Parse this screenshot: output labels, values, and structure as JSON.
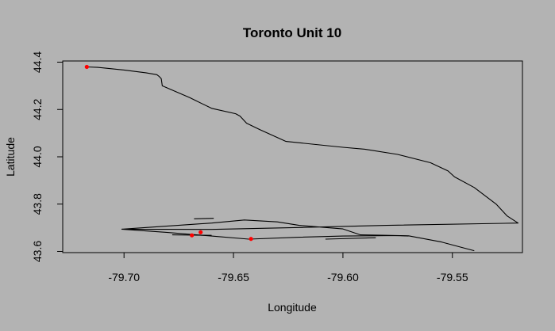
{
  "chart_data": {
    "type": "line",
    "title": "Toronto Unit 10",
    "xlabel": "Longitude",
    "ylabel": "Latitude",
    "xlim": [
      -79.728,
      -79.518
    ],
    "ylim": [
      43.595,
      44.405
    ],
    "x_ticks": [
      -79.7,
      -79.65,
      -79.6,
      -79.55
    ],
    "x_tick_labels": [
      "-79.70",
      "-79.65",
      "-79.60",
      "-79.55"
    ],
    "y_ticks": [
      43.6,
      43.8,
      44.0,
      44.2,
      44.4
    ],
    "y_tick_labels": [
      "43.6",
      "43.8",
      "44.0",
      "44.2",
      "44.4"
    ],
    "grid": false,
    "series": [
      {
        "color": "#000000",
        "x": [
          -79.717,
          -79.712,
          -79.7,
          -79.69,
          -79.685,
          -79.684,
          -79.683,
          -79.6825,
          -79.67,
          -79.66,
          -79.649,
          -79.647,
          -79.645,
          -79.644,
          -79.638,
          -79.626,
          -79.6,
          -79.59,
          -79.575,
          -79.56,
          -79.552,
          -79.549,
          -79.54,
          -79.53,
          -79.525,
          -79.52,
          -79.58,
          -79.62,
          -79.66,
          -79.701,
          -79.66,
          -79.645,
          -79.63,
          -79.62,
          -79.6,
          -79.592,
          -79.58,
          -79.57,
          -79.555,
          -79.545,
          -79.54
        ],
        "y": [
          44.38,
          44.378,
          44.367,
          44.355,
          44.347,
          44.34,
          44.33,
          44.3,
          44.25,
          44.205,
          44.182,
          44.172,
          44.152,
          44.142,
          44.115,
          44.065,
          44.04,
          44.032,
          44.01,
          43.975,
          43.94,
          43.915,
          43.87,
          43.8,
          43.75,
          43.72,
          43.71,
          43.701,
          43.693,
          43.694,
          43.72,
          43.733,
          43.725,
          43.71,
          43.695,
          43.67,
          43.668,
          43.666,
          43.64,
          43.615,
          43.603
        ]
      },
      {
        "color": "#000000",
        "x": [
          -79.701,
          -79.68,
          -79.66,
          -79.643,
          -79.62,
          -79.6,
          -79.575,
          -79.57
        ],
        "y": [
          43.694,
          43.68,
          43.665,
          43.652,
          43.66,
          43.665,
          43.667,
          43.665
        ]
      },
      {
        "color": "#000000",
        "x": [
          -79.678,
          -79.66
        ],
        "y": [
          43.67,
          43.668
        ]
      },
      {
        "color": "#000000",
        "x": [
          -79.668,
          -79.659
        ],
        "y": [
          43.738,
          43.74
        ]
      },
      {
        "color": "#000000",
        "x": [
          -79.608,
          -79.585
        ],
        "y": [
          43.652,
          43.658
        ]
      }
    ],
    "points": {
      "color": "#ff0000",
      "x": [
        -79.717,
        -79.665,
        -79.669,
        -79.642
      ],
      "y": [
        44.38,
        43.681,
        43.668,
        43.653
      ]
    }
  }
}
